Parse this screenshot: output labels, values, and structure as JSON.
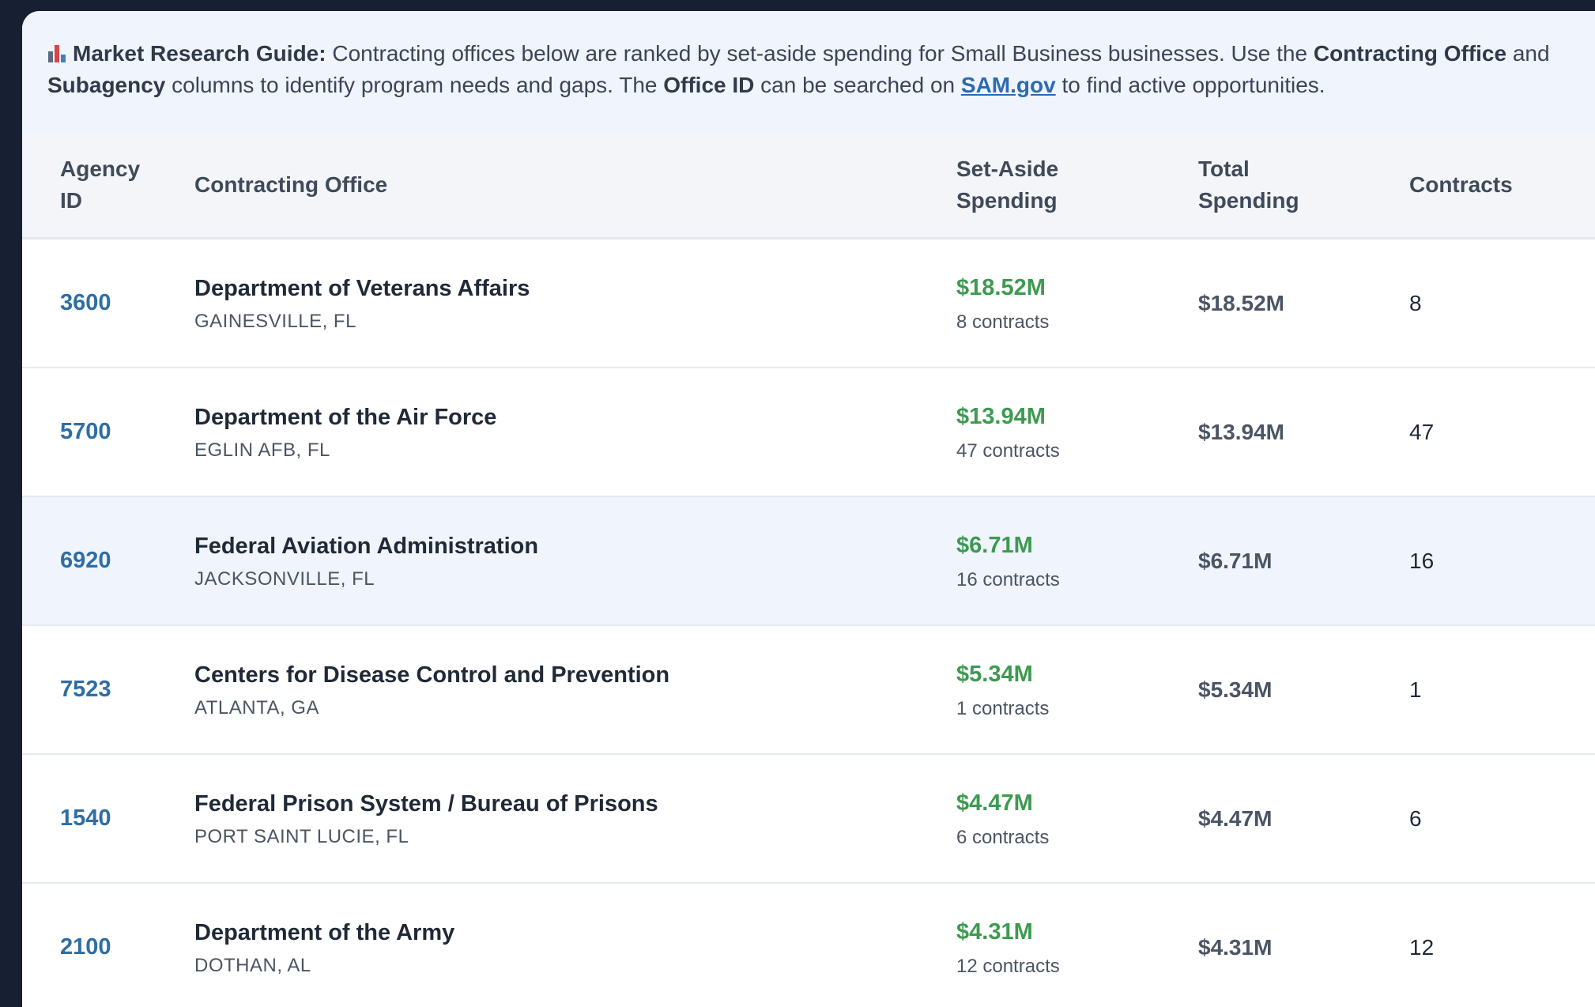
{
  "guide": {
    "icon": "bar-chart-icon",
    "title": "Market Research Guide:",
    "text1": " Contracting offices below are ranked by set-aside spending for Small Business businesses. Use the ",
    "bold1": "Contracting Office",
    "text2": " and ",
    "bold2": "Subagency",
    "text3": " columns to identify program needs and gaps. The ",
    "bold3": "Office ID",
    "text4": " can be searched on ",
    "link": "SAM.gov",
    "text5": " to find active opportunities."
  },
  "table": {
    "headers": {
      "agency_id": "Agency ID",
      "office": "Contracting Office",
      "setaside": "Set-Aside Spending",
      "total": "Total Spending",
      "contracts": "Contracts"
    },
    "rows": [
      {
        "agency_id": "3600",
        "office": "Department of Veterans Affairs",
        "location": "GAINESVILLE, FL",
        "setaside": "$18.52M",
        "setaside_count": "8 contracts",
        "total": "$18.52M",
        "contracts": "8"
      },
      {
        "agency_id": "5700",
        "office": "Department of the Air Force",
        "location": "EGLIN AFB, FL",
        "setaside": "$13.94M",
        "setaside_count": "47 contracts",
        "total": "$13.94M",
        "contracts": "47"
      },
      {
        "agency_id": "6920",
        "office": "Federal Aviation Administration",
        "location": "JACKSONVILLE, FL",
        "setaside": "$6.71M",
        "setaside_count": "16 contracts",
        "total": "$6.71M",
        "contracts": "16"
      },
      {
        "agency_id": "7523",
        "office": "Centers for Disease Control and Prevention",
        "location": "ATLANTA, GA",
        "setaside": "$5.34M",
        "setaside_count": "1 contracts",
        "total": "$5.34M",
        "contracts": "1"
      },
      {
        "agency_id": "1540",
        "office": "Federal Prison System / Bureau of Prisons",
        "location": "PORT SAINT LUCIE, FL",
        "setaside": "$4.47M",
        "setaside_count": "6 contracts",
        "total": "$4.47M",
        "contracts": "6"
      },
      {
        "agency_id": "2100",
        "office": "Department of the Army",
        "location": "DOTHAN, AL",
        "setaside": "$4.31M",
        "setaside_count": "12 contracts",
        "total": "$4.31M",
        "contracts": "12"
      }
    ]
  },
  "colors": {
    "background": "#172033",
    "accent_link": "#2b6cb0",
    "setaside_green": "#3d9a50",
    "highlight_row": "#eff4fd"
  }
}
